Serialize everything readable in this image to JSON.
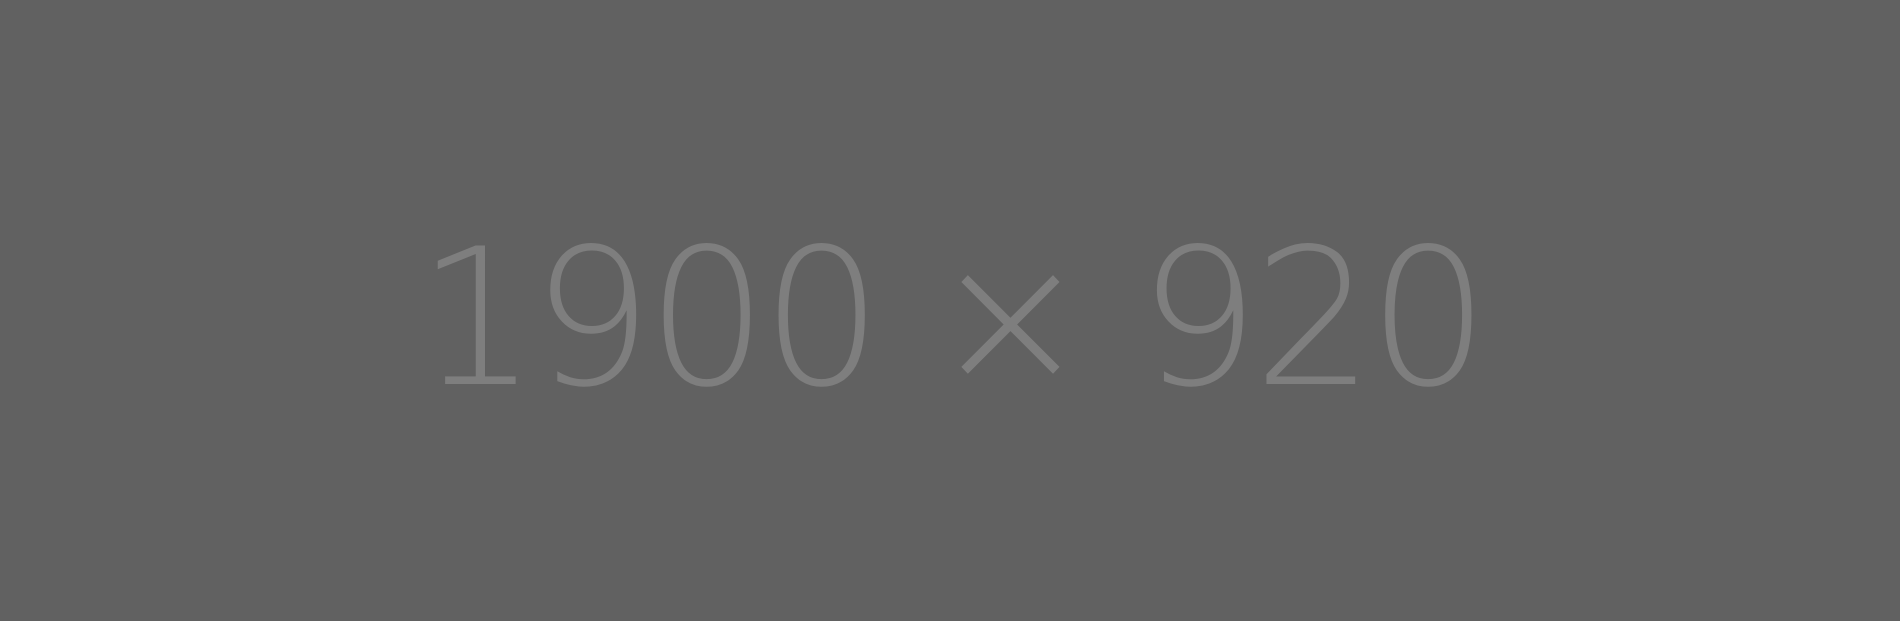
{
  "placeholder": {
    "label": "1900 × 920",
    "background_color": "#616161",
    "text_color": "#7e7e7e"
  }
}
